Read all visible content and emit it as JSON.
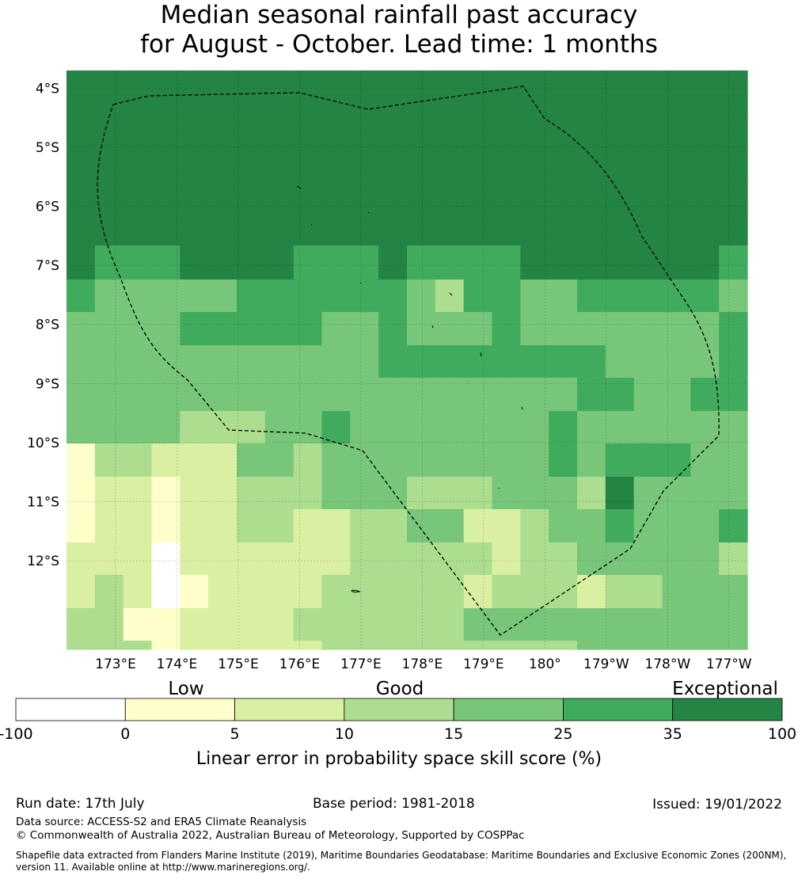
{
  "title": {
    "line1": "Median seasonal rainfall past accuracy",
    "line2": "for August - October. Lead time: 1 months"
  },
  "map": {
    "lon_range": [
      "172.2E",
      "-176.7 (176.7°W)"
    ],
    "lat_range": [
      "-3.7",
      "-13.5"
    ],
    "lon_ticks": [
      {
        "value": 173,
        "label": "173°E"
      },
      {
        "value": 174,
        "label": "174°E"
      },
      {
        "value": 175,
        "label": "175°E"
      },
      {
        "value": 176,
        "label": "176°E"
      },
      {
        "value": 177,
        "label": "177°E"
      },
      {
        "value": 178,
        "label": "178°E"
      },
      {
        "value": 179,
        "label": "179°E"
      },
      {
        "value": 180,
        "label": "180°"
      },
      {
        "value": 181,
        "label": "179°W"
      },
      {
        "value": 182,
        "label": "178°W"
      },
      {
        "value": 183,
        "label": "177°W"
      }
    ],
    "lat_ticks": [
      {
        "value": -4,
        "label": "4°S"
      },
      {
        "value": -5,
        "label": "5°S"
      },
      {
        "value": -6,
        "label": "6°S"
      },
      {
        "value": -7,
        "label": "7°S"
      },
      {
        "value": -8,
        "label": "8°S"
      },
      {
        "value": -9,
        "label": "9°S"
      },
      {
        "value": -10,
        "label": "10°S"
      },
      {
        "value": -11,
        "label": "11°S"
      },
      {
        "value": -12,
        "label": "12°S"
      }
    ],
    "grid_lines": true,
    "boundary_style": "dashed",
    "colors": [
      "#ffffff",
      "#ffffcc",
      "#d9f0a3",
      "#addd8e",
      "#78c679",
      "#41ab5d",
      "#238443"
    ],
    "grid_rows": [
      "666666666666666666666666",
      "666666666666666666666666",
      "666666666666666666666666",
      "666666666666666666666666",
      "666666666666666666666666",
      "666666666666666666666666",
      "655566665556555566666665",
      "544444555555435544555554",
      "444455555445444544444445",
      "444444444445555555544445",
      "444444444444444444554455",
      "444433344544444445444444",
      "133222443444444445455544",
      "122122333444333444364444",
      "122122332233442234454445",
      "222022222233333233444443",
      "232012222333332333233444",
      "331122223333334444444444",
      "333122222333333333444444"
    ]
  },
  "colorbar": {
    "category_labels": [
      "Low",
      "Good",
      "Exceptional"
    ],
    "tick_labels": [
      "-100",
      "0",
      "5",
      "10",
      "15",
      "25",
      "35",
      "100"
    ],
    "colors": [
      "#ffffff",
      "#ffffcc",
      "#d9f0a3",
      "#addd8e",
      "#78c679",
      "#41ab5d",
      "#238443"
    ],
    "label": "Linear error in probability space skill score (%)"
  },
  "footer": {
    "run_date": "Run date: 17th July",
    "base_period": "Base period: 1981-2018",
    "issued": "Issued: 19/01/2022",
    "data_source": "Data source: ACCESS-S2 and ERA5 Climate Reanalysis",
    "copyright": "© Commonwealth of Australia 2022, Australian Bureau of Meteorology, Supported by COSPPac",
    "shapefile_line1": "Shapefile data extracted from Flanders Marine Institute (2019), Maritime Boundaries Geodatabase: Maritime Boundaries and Exclusive Economic Zones (200NM),",
    "shapefile_line2": "version 11. Available online at http://www.marineregions.org/."
  }
}
